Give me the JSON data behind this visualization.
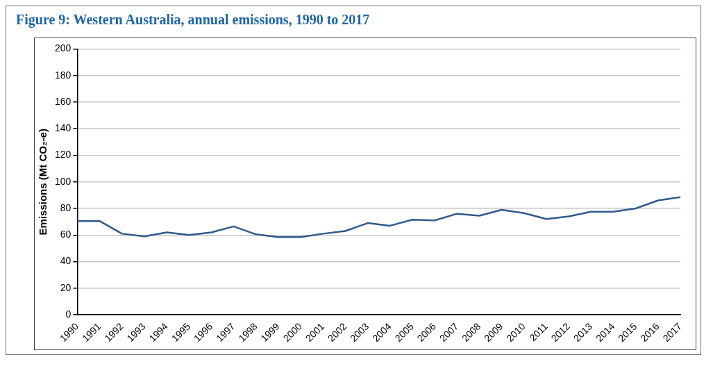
{
  "chart_data": {
    "type": "line",
    "title": "Figure 9: Western Australia, annual emissions, 1990 to 2017",
    "ylabel": "Emissions (Mt CO₂-e)",
    "categories": [
      "1990",
      "1991",
      "1992",
      "1993",
      "1994",
      "1995",
      "1996",
      "1997",
      "1998",
      "1999",
      "2000",
      "2001",
      "2002",
      "2003",
      "2004",
      "2005",
      "2006",
      "2007",
      "2008",
      "2009",
      "2010",
      "2011",
      "2012",
      "2013",
      "2014",
      "2015",
      "2016",
      "2017"
    ],
    "series": [
      {
        "color": "#2f5b8c",
        "values": [
          70.5,
          70.5,
          61,
          59,
          62,
          60,
          62,
          66.5,
          60.5,
          58.5,
          58.5,
          61,
          63,
          69,
          67,
          71.5,
          71,
          76,
          74.5,
          79,
          76.5,
          72,
          74,
          77.5,
          77.5,
          80,
          86,
          88.5
        ]
      }
    ],
    "ylim": [
      0,
      200
    ],
    "yticks": [
      0,
      20,
      40,
      60,
      80,
      100,
      120,
      140,
      160,
      180,
      200
    ],
    "grid": "y",
    "legend": false,
    "marker": "none",
    "line_style": "solid"
  }
}
